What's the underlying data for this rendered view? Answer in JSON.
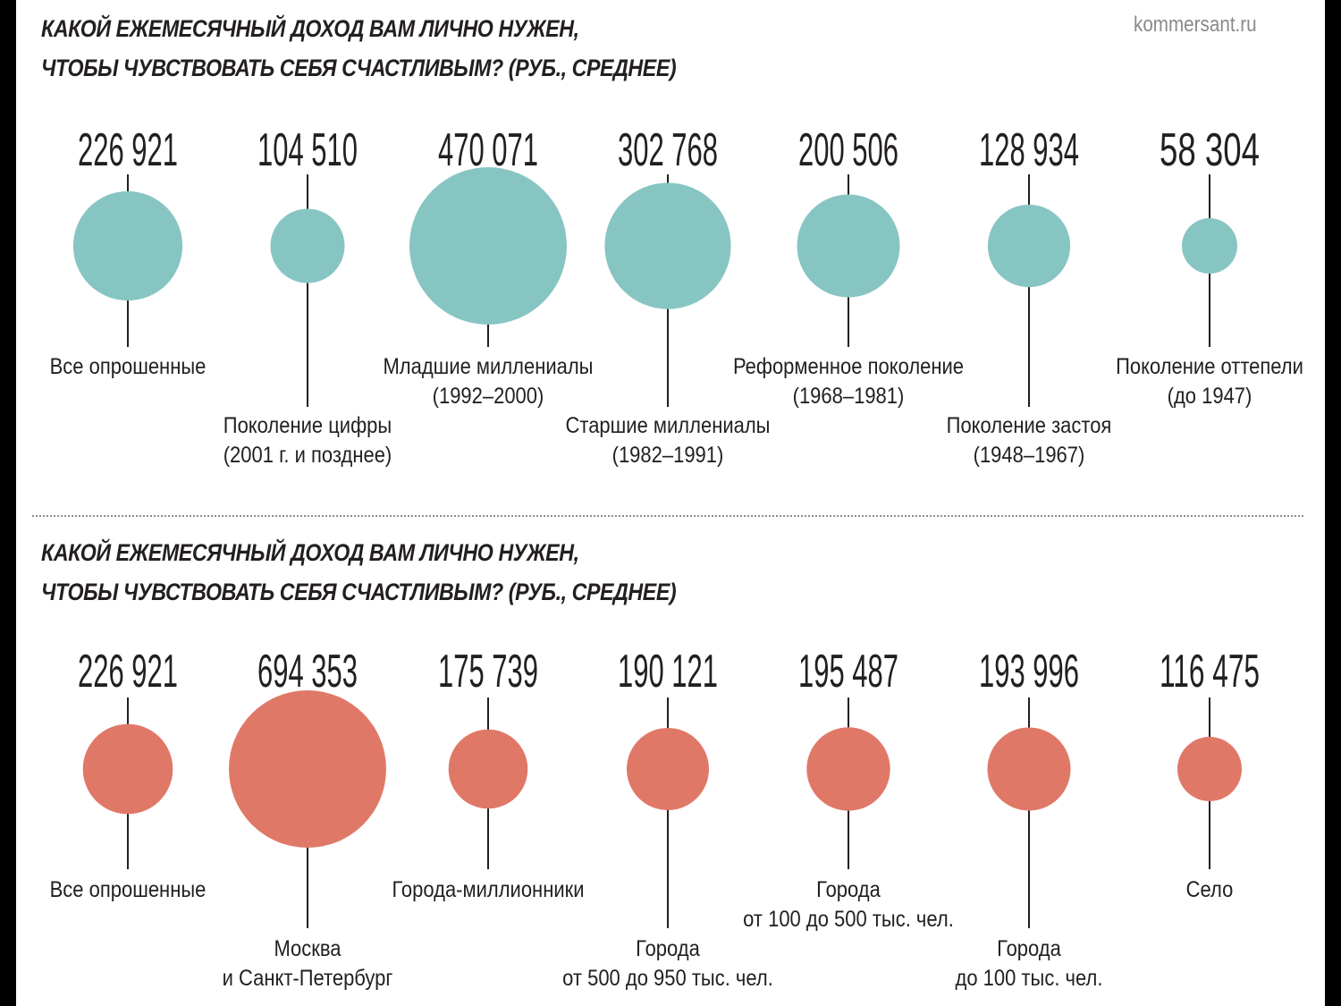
{
  "source": "kommersant.ru",
  "chart_data": [
    {
      "type": "bubble",
      "title_lines": [
        "КАКОЙ ЕЖЕМЕСЯЧНЫЙ ДОХОД ВАМ ЛИЧНО НУЖЕН,",
        "ЧТОБЫ ЧУВСТВОВАТЬ СЕБЯ СЧАСТЛИВЫМ? (РУБ., СРЕДНЕЕ)"
      ],
      "color": "#87c5c2",
      "items": [
        {
          "label": [
            "Все опрошенные"
          ],
          "value": 226921,
          "value_label": "226 921"
        },
        {
          "label": [
            "Поколение цифры",
            "(2001 г. и позднее)"
          ],
          "value": 104510,
          "value_label": "104 510"
        },
        {
          "label": [
            "Младшие миллениалы",
            "(1992–2000)"
          ],
          "value": 470071,
          "value_label": "470 071"
        },
        {
          "label": [
            "Старшие миллениалы",
            "(1982–1991)"
          ],
          "value": 302768,
          "value_label": "302 768"
        },
        {
          "label": [
            "Реформенное поколение",
            "(1968–1981)"
          ],
          "value": 200506,
          "value_label": "200 506"
        },
        {
          "label": [
            "Поколение застоя",
            "(1948–1967)"
          ],
          "value": 128934,
          "value_label": "128 934"
        },
        {
          "label": [
            "Поколение оттепели",
            "(до 1947)"
          ],
          "value": 58304,
          "value_label": "58 304"
        }
      ]
    },
    {
      "type": "bubble",
      "title_lines": [
        "КАКОЙ ЕЖЕМЕСЯЧНЫЙ ДОХОД ВАМ ЛИЧНО НУЖЕН,",
        "ЧТОБЫ ЧУВСТВОВАТЬ СЕБЯ СЧАСТЛИВЫМ? (РУБ., СРЕДНЕЕ)"
      ],
      "color": "#e07868",
      "items": [
        {
          "label": [
            "Все опрошенные"
          ],
          "value": 226921,
          "value_label": "226 921"
        },
        {
          "label": [
            "Москва",
            "и Санкт-Петербург"
          ],
          "value": 694353,
          "value_label": "694 353"
        },
        {
          "label": [
            "Города-миллионники"
          ],
          "value": 175739,
          "value_label": "175 739"
        },
        {
          "label": [
            "Города",
            "от 500 до 950 тыс. чел."
          ],
          "value": 190121,
          "value_label": "190 121"
        },
        {
          "label": [
            "Города",
            "от 100 до 500 тыс. чел."
          ],
          "value": 195487,
          "value_label": "195 487"
        },
        {
          "label": [
            "Города",
            "до 100 тыс. чел."
          ],
          "value": 193996,
          "value_label": "193 996"
        },
        {
          "label": [
            "Село"
          ],
          "value": 116475,
          "value_label": "116 475"
        }
      ]
    }
  ]
}
